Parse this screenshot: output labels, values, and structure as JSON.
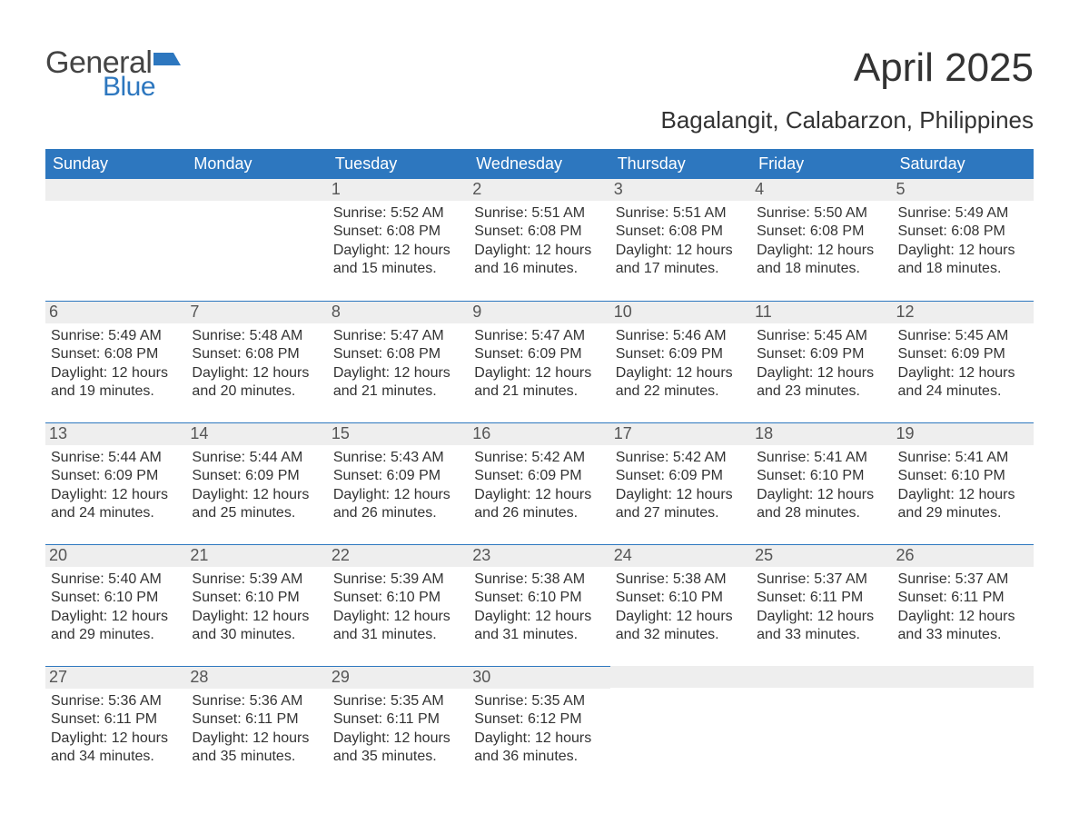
{
  "logo": {
    "general": "General",
    "blue": "Blue",
    "flag_color": "#2d77bf"
  },
  "title": "April 2025",
  "location": "Bagalangit, Calabarzon, Philippines",
  "colors": {
    "header_bg": "#2d77bf",
    "header_text": "#ffffff",
    "daynum_bg": "#eeeeee",
    "row_divider": "#2d77bf",
    "body_text": "#333333"
  },
  "day_headers": [
    "Sunday",
    "Monday",
    "Tuesday",
    "Wednesday",
    "Thursday",
    "Friday",
    "Saturday"
  ],
  "weeks": [
    [
      null,
      null,
      {
        "day": "1",
        "sunrise": "Sunrise: 5:52 AM",
        "sunset": "Sunset: 6:08 PM",
        "dl1": "Daylight: 12 hours",
        "dl2": "and 15 minutes."
      },
      {
        "day": "2",
        "sunrise": "Sunrise: 5:51 AM",
        "sunset": "Sunset: 6:08 PM",
        "dl1": "Daylight: 12 hours",
        "dl2": "and 16 minutes."
      },
      {
        "day": "3",
        "sunrise": "Sunrise: 5:51 AM",
        "sunset": "Sunset: 6:08 PM",
        "dl1": "Daylight: 12 hours",
        "dl2": "and 17 minutes."
      },
      {
        "day": "4",
        "sunrise": "Sunrise: 5:50 AM",
        "sunset": "Sunset: 6:08 PM",
        "dl1": "Daylight: 12 hours",
        "dl2": "and 18 minutes."
      },
      {
        "day": "5",
        "sunrise": "Sunrise: 5:49 AM",
        "sunset": "Sunset: 6:08 PM",
        "dl1": "Daylight: 12 hours",
        "dl2": "and 18 minutes."
      }
    ],
    [
      {
        "day": "6",
        "sunrise": "Sunrise: 5:49 AM",
        "sunset": "Sunset: 6:08 PM",
        "dl1": "Daylight: 12 hours",
        "dl2": "and 19 minutes."
      },
      {
        "day": "7",
        "sunrise": "Sunrise: 5:48 AM",
        "sunset": "Sunset: 6:08 PM",
        "dl1": "Daylight: 12 hours",
        "dl2": "and 20 minutes."
      },
      {
        "day": "8",
        "sunrise": "Sunrise: 5:47 AM",
        "sunset": "Sunset: 6:08 PM",
        "dl1": "Daylight: 12 hours",
        "dl2": "and 21 minutes."
      },
      {
        "day": "9",
        "sunrise": "Sunrise: 5:47 AM",
        "sunset": "Sunset: 6:09 PM",
        "dl1": "Daylight: 12 hours",
        "dl2": "and 21 minutes."
      },
      {
        "day": "10",
        "sunrise": "Sunrise: 5:46 AM",
        "sunset": "Sunset: 6:09 PM",
        "dl1": "Daylight: 12 hours",
        "dl2": "and 22 minutes."
      },
      {
        "day": "11",
        "sunrise": "Sunrise: 5:45 AM",
        "sunset": "Sunset: 6:09 PM",
        "dl1": "Daylight: 12 hours",
        "dl2": "and 23 minutes."
      },
      {
        "day": "12",
        "sunrise": "Sunrise: 5:45 AM",
        "sunset": "Sunset: 6:09 PM",
        "dl1": "Daylight: 12 hours",
        "dl2": "and 24 minutes."
      }
    ],
    [
      {
        "day": "13",
        "sunrise": "Sunrise: 5:44 AM",
        "sunset": "Sunset: 6:09 PM",
        "dl1": "Daylight: 12 hours",
        "dl2": "and 24 minutes."
      },
      {
        "day": "14",
        "sunrise": "Sunrise: 5:44 AM",
        "sunset": "Sunset: 6:09 PM",
        "dl1": "Daylight: 12 hours",
        "dl2": "and 25 minutes."
      },
      {
        "day": "15",
        "sunrise": "Sunrise: 5:43 AM",
        "sunset": "Sunset: 6:09 PM",
        "dl1": "Daylight: 12 hours",
        "dl2": "and 26 minutes."
      },
      {
        "day": "16",
        "sunrise": "Sunrise: 5:42 AM",
        "sunset": "Sunset: 6:09 PM",
        "dl1": "Daylight: 12 hours",
        "dl2": "and 26 minutes."
      },
      {
        "day": "17",
        "sunrise": "Sunrise: 5:42 AM",
        "sunset": "Sunset: 6:09 PM",
        "dl1": "Daylight: 12 hours",
        "dl2": "and 27 minutes."
      },
      {
        "day": "18",
        "sunrise": "Sunrise: 5:41 AM",
        "sunset": "Sunset: 6:10 PM",
        "dl1": "Daylight: 12 hours",
        "dl2": "and 28 minutes."
      },
      {
        "day": "19",
        "sunrise": "Sunrise: 5:41 AM",
        "sunset": "Sunset: 6:10 PM",
        "dl1": "Daylight: 12 hours",
        "dl2": "and 29 minutes."
      }
    ],
    [
      {
        "day": "20",
        "sunrise": "Sunrise: 5:40 AM",
        "sunset": "Sunset: 6:10 PM",
        "dl1": "Daylight: 12 hours",
        "dl2": "and 29 minutes."
      },
      {
        "day": "21",
        "sunrise": "Sunrise: 5:39 AM",
        "sunset": "Sunset: 6:10 PM",
        "dl1": "Daylight: 12 hours",
        "dl2": "and 30 minutes."
      },
      {
        "day": "22",
        "sunrise": "Sunrise: 5:39 AM",
        "sunset": "Sunset: 6:10 PM",
        "dl1": "Daylight: 12 hours",
        "dl2": "and 31 minutes."
      },
      {
        "day": "23",
        "sunrise": "Sunrise: 5:38 AM",
        "sunset": "Sunset: 6:10 PM",
        "dl1": "Daylight: 12 hours",
        "dl2": "and 31 minutes."
      },
      {
        "day": "24",
        "sunrise": "Sunrise: 5:38 AM",
        "sunset": "Sunset: 6:10 PM",
        "dl1": "Daylight: 12 hours",
        "dl2": "and 32 minutes."
      },
      {
        "day": "25",
        "sunrise": "Sunrise: 5:37 AM",
        "sunset": "Sunset: 6:11 PM",
        "dl1": "Daylight: 12 hours",
        "dl2": "and 33 minutes."
      },
      {
        "day": "26",
        "sunrise": "Sunrise: 5:37 AM",
        "sunset": "Sunset: 6:11 PM",
        "dl1": "Daylight: 12 hours",
        "dl2": "and 33 minutes."
      }
    ],
    [
      {
        "day": "27",
        "sunrise": "Sunrise: 5:36 AM",
        "sunset": "Sunset: 6:11 PM",
        "dl1": "Daylight: 12 hours",
        "dl2": "and 34 minutes."
      },
      {
        "day": "28",
        "sunrise": "Sunrise: 5:36 AM",
        "sunset": "Sunset: 6:11 PM",
        "dl1": "Daylight: 12 hours",
        "dl2": "and 35 minutes."
      },
      {
        "day": "29",
        "sunrise": "Sunrise: 5:35 AM",
        "sunset": "Sunset: 6:11 PM",
        "dl1": "Daylight: 12 hours",
        "dl2": "and 35 minutes."
      },
      {
        "day": "30",
        "sunrise": "Sunrise: 5:35 AM",
        "sunset": "Sunset: 6:12 PM",
        "dl1": "Daylight: 12 hours",
        "dl2": "and 36 minutes."
      },
      null,
      null,
      null
    ]
  ]
}
